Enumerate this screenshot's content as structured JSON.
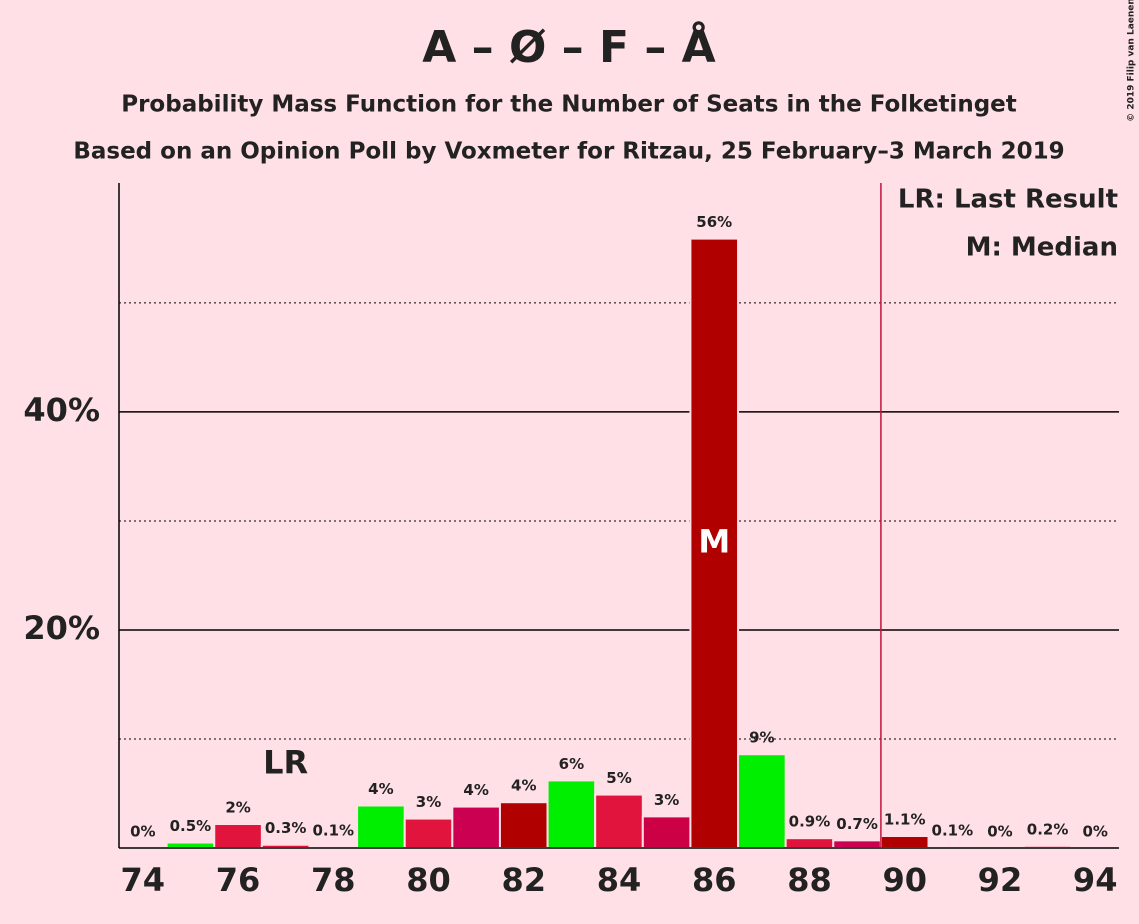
{
  "chart_data": {
    "type": "bar",
    "title": "A – Ø – F – Å",
    "subtitle": "Probability Mass Function for the Number of Seats in the Folketinget",
    "subtitle2": "Based on an Opinion Poll by Voxmeter for Ritzau, 25 February–3 March 2019",
    "x": [
      74,
      75,
      76,
      77,
      78,
      79,
      80,
      81,
      82,
      83,
      84,
      85,
      86,
      87,
      88,
      89,
      90,
      91,
      92,
      93,
      94
    ],
    "values": [
      0,
      0.5,
      2.2,
      0.3,
      0.1,
      3.9,
      2.7,
      3.8,
      4.2,
      6.2,
      4.9,
      2.9,
      55.9,
      8.6,
      0.9,
      0.7,
      1.1,
      0.1,
      0,
      0.2,
      0
    ],
    "value_labels": [
      "0%",
      "0.5%",
      "2%",
      "0.3%",
      "0.1%",
      "4%",
      "3%",
      "4%",
      "4%",
      "6%",
      "5%",
      "3%",
      "56%",
      "9%",
      "0.9%",
      "0.7%",
      "1.1%",
      "0.1%",
      "0%",
      "0.2%",
      "0%"
    ],
    "colors": [
      "#e0143c",
      "#00ee00",
      "#e0143c",
      "#e0143c",
      "#e0143c",
      "#00ee00",
      "#e0143c",
      "#cc0050",
      "#b00000",
      "#00ee00",
      "#e0143c",
      "#cc0044",
      "#b00000",
      "#00ee00",
      "#e0143c",
      "#cc0050",
      "#b00000",
      "#e0143c",
      "#e0143c",
      "#e0143c",
      "#e0143c"
    ],
    "xlim": [
      73.5,
      94.5
    ],
    "xticks": [
      74,
      76,
      78,
      80,
      82,
      84,
      86,
      88,
      90,
      92,
      94
    ],
    "ylim": [
      0,
      61
    ],
    "yticks": [
      {
        "value": 20,
        "label": "20%"
      },
      {
        "value": 40,
        "label": "40%"
      }
    ],
    "minor_yticks": [
      10,
      30,
      50
    ],
    "last_result": 77,
    "last_result_label": "LR",
    "median": 86,
    "median_label": "M",
    "majority_line": 89.5,
    "legend": [
      "LR: Last Result",
      "M: Median"
    ],
    "copyright": "© 2019 Filip van Laenen"
  }
}
